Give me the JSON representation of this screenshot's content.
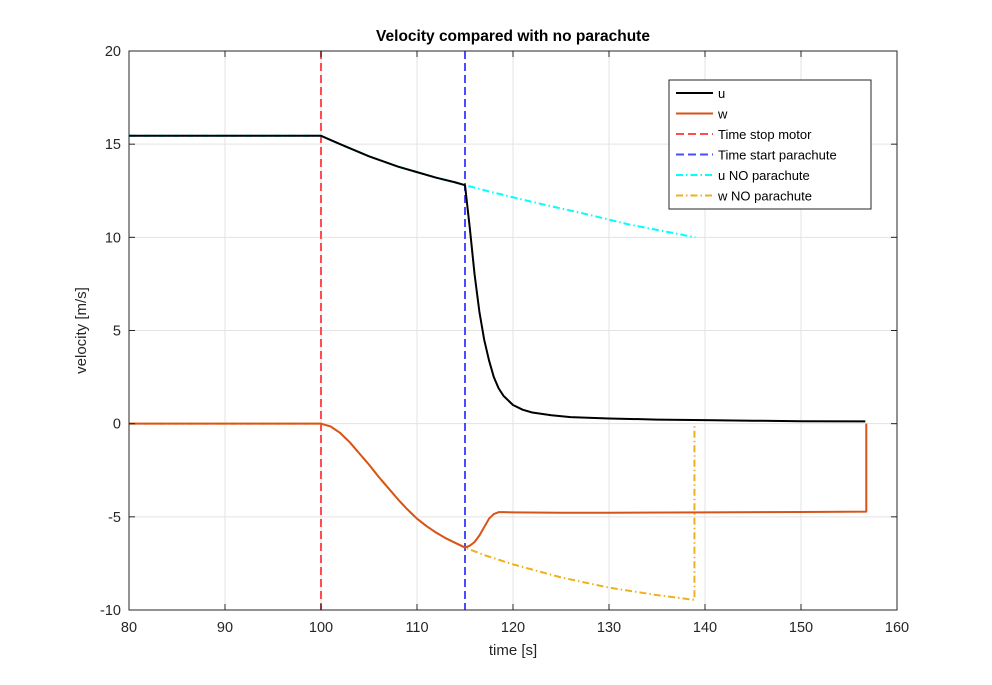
{
  "chart_data": {
    "type": "line",
    "title": "Velocity compared with no parachute",
    "xlabel": "time [s]",
    "ylabel": "velocity [m/s]",
    "xlim": [
      80,
      160
    ],
    "ylim": [
      -10,
      20
    ],
    "xticks": [
      80,
      90,
      100,
      110,
      120,
      130,
      140,
      150,
      160
    ],
    "yticks": [
      -10,
      -5,
      0,
      5,
      10,
      15,
      20
    ],
    "xtick_labels": [
      "80",
      "90",
      "100",
      "110",
      "120",
      "130",
      "140",
      "150",
      "160"
    ],
    "ytick_labels": [
      "-10",
      "-5",
      "0",
      "5",
      "10",
      "15",
      "20"
    ],
    "grid": true,
    "legend_position": "top-right",
    "series": [
      {
        "name": "u NO parachute",
        "color": "#00ffff",
        "style": "dashdot",
        "x": [
          80,
          100,
          102,
          105,
          108,
          110,
          112,
          115,
          118,
          120,
          122,
          125,
          128,
          130,
          132,
          135,
          138,
          139
        ],
        "y": [
          15.45,
          15.45,
          15.0,
          14.35,
          13.8,
          13.5,
          13.2,
          12.8,
          12.4,
          12.15,
          11.9,
          11.55,
          11.2,
          10.95,
          10.7,
          10.4,
          10.1,
          10.0
        ]
      },
      {
        "name": "w NO parachute",
        "color": "#edb120",
        "style": "dashdot",
        "x": [
          80,
          100,
          101,
          102,
          103,
          104,
          105,
          106,
          107,
          108,
          109,
          110,
          111,
          112,
          113,
          114,
          115,
          117,
          120,
          125,
          130,
          135,
          138.8,
          138.9,
          138.9
        ],
        "y": [
          0,
          0,
          -0.15,
          -0.5,
          -1.0,
          -1.6,
          -2.2,
          -2.85,
          -3.45,
          -4.05,
          -4.6,
          -5.1,
          -5.5,
          -5.85,
          -6.15,
          -6.4,
          -6.65,
          -7.05,
          -7.55,
          -8.25,
          -8.8,
          -9.2,
          -9.45,
          -9.45,
          0
        ]
      },
      {
        "name": "u",
        "color": "#000000",
        "style": "solid",
        "x": [
          80,
          100,
          102,
          105,
          108,
          110,
          112,
          114,
          115,
          115.5,
          116,
          116.5,
          117,
          117.5,
          118,
          118.5,
          119,
          120,
          121,
          122,
          124,
          126,
          130,
          135,
          140,
          145,
          150,
          156.7,
          156.7
        ],
        "y": [
          15.45,
          15.45,
          15.0,
          14.35,
          13.8,
          13.5,
          13.2,
          12.95,
          12.8,
          10.5,
          8.0,
          6.0,
          4.5,
          3.4,
          2.5,
          1.9,
          1.5,
          1.0,
          0.75,
          0.6,
          0.45,
          0.35,
          0.28,
          0.22,
          0.19,
          0.16,
          0.13,
          0.12,
          0.12
        ]
      },
      {
        "name": "w",
        "color": "#d95319",
        "style": "solid",
        "x": [
          80,
          100,
          101,
          102,
          103,
          104,
          105,
          106,
          107,
          108,
          109,
          110,
          111,
          112,
          113,
          114,
          115,
          115.5,
          116,
          116.5,
          117,
          117.5,
          118,
          118.5,
          119,
          120,
          125,
          130,
          140,
          150,
          156.7,
          156.8,
          156.8
        ],
        "y": [
          0,
          0,
          -0.15,
          -0.5,
          -1.0,
          -1.6,
          -2.2,
          -2.85,
          -3.45,
          -4.05,
          -4.6,
          -5.1,
          -5.5,
          -5.85,
          -6.15,
          -6.4,
          -6.65,
          -6.55,
          -6.35,
          -6.0,
          -5.55,
          -5.1,
          -4.85,
          -4.75,
          -4.75,
          -4.76,
          -4.78,
          -4.78,
          -4.76,
          -4.74,
          -4.72,
          -4.72,
          0
        ]
      }
    ],
    "vlines": [
      {
        "name": "Time stop motor",
        "x": 100,
        "color": "#ff4c4c",
        "style": "dashed"
      },
      {
        "name": "Time start parachute",
        "x": 115,
        "color": "#4c4cff",
        "style": "dashed"
      }
    ],
    "legend": [
      {
        "label": "u",
        "color": "#000000",
        "style": "solid"
      },
      {
        "label": "w",
        "color": "#d95319",
        "style": "solid"
      },
      {
        "label": "Time stop motor",
        "color": "#ff4c4c",
        "style": "dashed"
      },
      {
        "label": "Time start parachute",
        "color": "#4c4cff",
        "style": "dashed"
      },
      {
        "label": "u NO parachute",
        "color": "#00ffff",
        "style": "dashdot"
      },
      {
        "label": "w NO parachute",
        "color": "#edb120",
        "style": "dashdot"
      }
    ]
  }
}
